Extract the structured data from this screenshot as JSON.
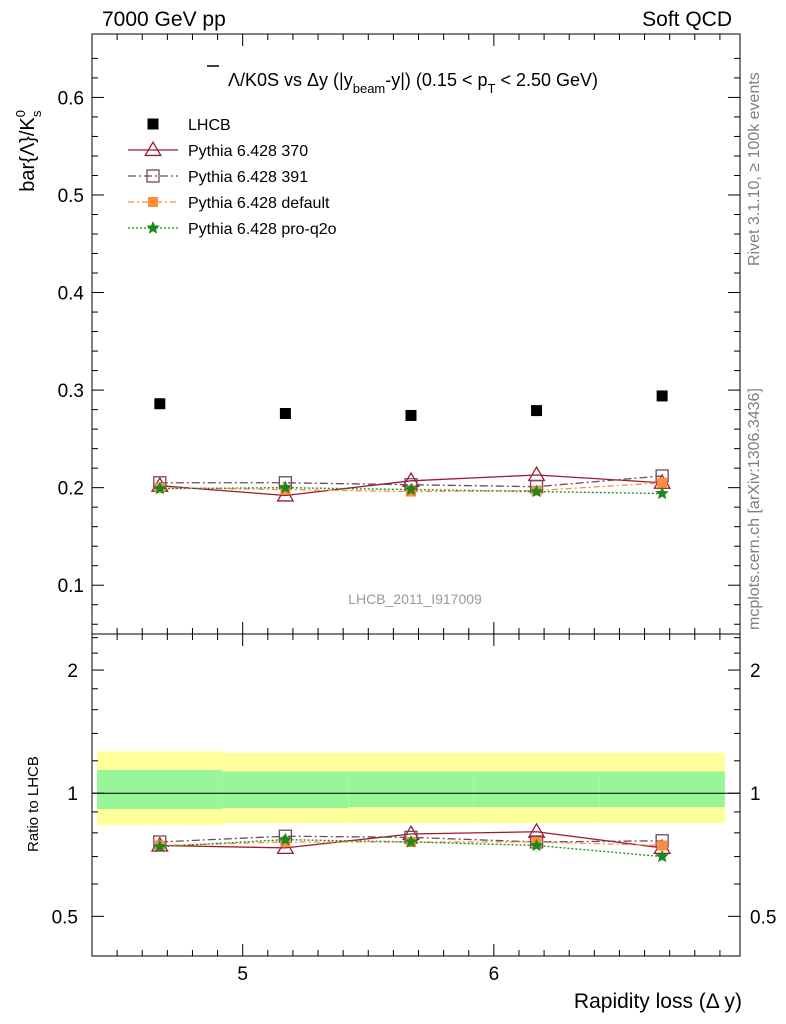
{
  "header": {
    "left": "7000 GeV pp",
    "right": "Soft QCD"
  },
  "side_labels": {
    "rivet": "Rivet 3.1.10, ≥ 100k events",
    "mcplots": "mcplots.cern.ch [arXiv:1306.3436]"
  },
  "title": {
    "part1": "Λ/K0S vs Δy (|y",
    "sub1": "beam",
    "part2": "-y|) (0.15 < p",
    "sub2": "T",
    "part3": " < 2.50 GeV)"
  },
  "ylabel_main": "bar{Λ}/K",
  "ylabel_main_sup": "0",
  "ylabel_main_sub": "s",
  "ylabel_ratio": "Ratio to LHCB",
  "xlabel": "Rapidity loss (Δ y)",
  "watermark": "LHCB_2011_I917009",
  "colors": {
    "lhcb": "#000000",
    "p370": "#9b1b30",
    "p391": "#6e4a5e",
    "default": "#ff8c3a",
    "proq2o": "#1a8a1a",
    "band_outer": "#ffff99",
    "band_inner": "#99f599"
  },
  "chart_data": [
    {
      "type": "scatter",
      "panel": "main",
      "x": [
        4.67,
        5.17,
        5.67,
        6.17,
        6.67
      ],
      "xlim": [
        4.4,
        6.98
      ],
      "ylim": [
        0.05,
        0.665
      ],
      "yticks": [
        0.1,
        0.2,
        0.3,
        0.4,
        0.5,
        0.6
      ],
      "ytick_labels": [
        "0.1",
        "0.2",
        "0.3",
        "0.4",
        "0.5",
        "0.6"
      ],
      "legend_position": "top-left",
      "series": [
        {
          "name": "LHCB",
          "key": "lhcb",
          "values": [
            0.286,
            0.276,
            0.274,
            0.279,
            0.294
          ]
        },
        {
          "name": "Pythia 6.428 370",
          "key": "p370",
          "values": [
            0.202,
            0.192,
            0.207,
            0.213,
            0.205
          ]
        },
        {
          "name": "Pythia 6.428 391",
          "key": "p391",
          "values": [
            0.205,
            0.205,
            0.203,
            0.201,
            0.212
          ]
        },
        {
          "name": "Pythia 6.428 default",
          "key": "default",
          "values": [
            0.2,
            0.198,
            0.196,
            0.197,
            0.205
          ]
        },
        {
          "name": "Pythia 6.428 pro-q2o",
          "key": "proq2o",
          "values": [
            0.199,
            0.2,
            0.198,
            0.196,
            0.194
          ]
        }
      ]
    },
    {
      "type": "scatter",
      "panel": "ratio",
      "x": [
        4.67,
        5.17,
        5.67,
        6.17,
        6.67
      ],
      "xlim": [
        4.4,
        6.98
      ],
      "ylim": [
        0.4,
        2.45
      ],
      "yticks": [
        0.5,
        1,
        2
      ],
      "ytick_labels": [
        "0.5",
        "1",
        "2"
      ],
      "xticks": [
        5,
        6
      ],
      "xtick_labels": [
        "5",
        "6"
      ],
      "bands": {
        "edges": [
          4.42,
          4.92,
          5.42,
          5.92,
          6.42,
          6.92
        ],
        "outer_low": [
          0.835,
          0.845,
          0.845,
          0.845,
          0.845
        ],
        "outer_high": [
          1.265,
          1.255,
          1.255,
          1.255,
          1.255
        ],
        "inner_low": [
          0.915,
          0.92,
          0.925,
          0.925,
          0.925
        ],
        "inner_high": [
          1.14,
          1.13,
          1.13,
          1.13,
          1.13
        ]
      },
      "series": [
        {
          "name": "Pythia 6.428 370",
          "key": "p370",
          "values": [
            0.745,
            0.735,
            0.795,
            0.805,
            0.735
          ]
        },
        {
          "name": "Pythia 6.428 391",
          "key": "p391",
          "values": [
            0.76,
            0.785,
            0.78,
            0.76,
            0.765
          ]
        },
        {
          "name": "Pythia 6.428 default",
          "key": "default",
          "values": [
            0.745,
            0.76,
            0.76,
            0.76,
            0.745
          ]
        },
        {
          "name": "Pythia 6.428 pro-q2o",
          "key": "proq2o",
          "values": [
            0.74,
            0.77,
            0.76,
            0.745,
            0.7
          ]
        }
      ]
    }
  ]
}
